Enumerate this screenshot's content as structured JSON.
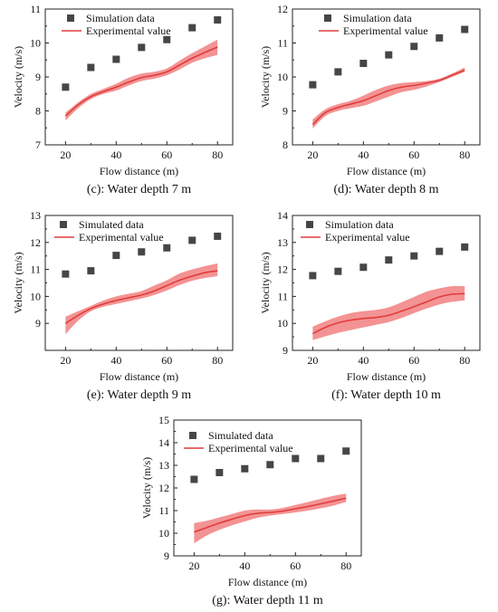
{
  "chart_data": [
    {
      "type": "line",
      "caption": "(c): Water depth 7 m",
      "xlabel": "Flow distance (m)",
      "ylabel": "Velocity (m/s)",
      "xlim": [
        12,
        86
      ],
      "ylim": [
        7,
        11
      ],
      "xticks": [
        "20",
        "40",
        "60",
        "80"
      ],
      "yticks": [
        "7",
        "8",
        "9",
        "10",
        "11"
      ],
      "legend_position": "top-left",
      "series": [
        {
          "name": "Simulation data",
          "kind": "scatter",
          "color": "#464646",
          "x": [
            20,
            30,
            40,
            50,
            60,
            70,
            80
          ],
          "y": [
            8.7,
            9.28,
            9.52,
            9.87,
            10.1,
            10.45,
            10.68
          ]
        },
        {
          "name": "Experimental value",
          "kind": "line_band",
          "color": "#e03c3c",
          "band_color": "#f07878",
          "x": [
            20,
            25,
            30,
            35,
            40,
            45,
            50,
            55,
            60,
            65,
            70,
            75,
            80
          ],
          "y": [
            7.85,
            8.18,
            8.42,
            8.57,
            8.7,
            8.85,
            8.98,
            9.05,
            9.15,
            9.35,
            9.55,
            9.72,
            9.88
          ],
          "upper": [
            7.95,
            8.25,
            8.5,
            8.65,
            8.8,
            8.98,
            9.1,
            9.15,
            9.25,
            9.48,
            9.7,
            9.9,
            10.1
          ],
          "lower": [
            7.72,
            8.08,
            8.35,
            8.5,
            8.6,
            8.75,
            8.88,
            8.95,
            9.05,
            9.22,
            9.42,
            9.55,
            9.65
          ]
        }
      ]
    },
    {
      "type": "line",
      "caption": "(d): Water depth 8 m",
      "xlabel": "Flow distance (m)",
      "ylabel": "Velocity (m/s)",
      "xlim": [
        12,
        86
      ],
      "ylim": [
        8,
        12
      ],
      "xticks": [
        "20",
        "40",
        "60",
        "80"
      ],
      "yticks": [
        "8",
        "9",
        "10",
        "11",
        "12"
      ],
      "legend_position": "top-left",
      "series": [
        {
          "name": "Simulation data",
          "kind": "scatter",
          "color": "#464646",
          "x": [
            20,
            30,
            40,
            50,
            60,
            70,
            80
          ],
          "y": [
            9.77,
            10.15,
            10.4,
            10.65,
            10.9,
            11.15,
            11.4
          ]
        },
        {
          "name": "Experimental value",
          "kind": "line_band",
          "color": "#e03c3c",
          "band_color": "#f07878",
          "x": [
            20,
            25,
            30,
            35,
            40,
            45,
            50,
            55,
            60,
            65,
            70,
            75,
            80
          ],
          "y": [
            8.6,
            8.95,
            9.1,
            9.2,
            9.3,
            9.45,
            9.6,
            9.7,
            9.75,
            9.82,
            9.9,
            10.05,
            10.2
          ],
          "upper": [
            8.75,
            9.05,
            9.2,
            9.3,
            9.45,
            9.62,
            9.75,
            9.82,
            9.85,
            9.88,
            9.95,
            10.1,
            10.28
          ],
          "lower": [
            8.48,
            8.85,
            9.0,
            9.08,
            9.15,
            9.28,
            9.42,
            9.55,
            9.62,
            9.72,
            9.85,
            10.0,
            10.15
          ]
        }
      ]
    },
    {
      "type": "line",
      "caption": "(e): Water depth 9 m",
      "xlabel": "Flow distance (m)",
      "ylabel": "Velocity (m/s)",
      "xlim": [
        12,
        86
      ],
      "ylim": [
        8,
        13
      ],
      "xticks": [
        "20",
        "40",
        "60",
        "80"
      ],
      "yticks": [
        "9",
        "10",
        "11",
        "12",
        "13"
      ],
      "legend_position": "top-left",
      "series": [
        {
          "name": "Simulated data",
          "kind": "scatter",
          "color": "#464646",
          "x": [
            20,
            30,
            40,
            50,
            60,
            70,
            80
          ],
          "y": [
            10.83,
            10.95,
            11.52,
            11.65,
            11.8,
            12.08,
            12.23
          ]
        },
        {
          "name": "Experimental value",
          "kind": "line_band",
          "color": "#e03c3c",
          "band_color": "#f07878",
          "x": [
            20,
            25,
            30,
            35,
            40,
            45,
            50,
            55,
            60,
            65,
            70,
            75,
            80
          ],
          "y": [
            9.0,
            9.3,
            9.55,
            9.72,
            9.85,
            9.95,
            10.05,
            10.2,
            10.4,
            10.6,
            10.75,
            10.88,
            10.95
          ],
          "upper": [
            9.25,
            9.45,
            9.65,
            9.85,
            10.0,
            10.1,
            10.2,
            10.4,
            10.6,
            10.85,
            11.0,
            11.12,
            11.22
          ],
          "lower": [
            8.6,
            9.1,
            9.45,
            9.62,
            9.72,
            9.82,
            9.92,
            10.05,
            10.22,
            10.42,
            10.58,
            10.68,
            10.75
          ]
        }
      ]
    },
    {
      "type": "line",
      "caption": "(f): Water depth 10 m",
      "xlabel": "Flow distance (m)",
      "ylabel": "Velocity (m/s)",
      "xlim": [
        12,
        86
      ],
      "ylim": [
        9,
        14
      ],
      "xticks": [
        "20",
        "40",
        "60",
        "80"
      ],
      "yticks": [
        "9",
        "10",
        "11",
        "12",
        "13",
        "14"
      ],
      "legend_position": "top-left",
      "series": [
        {
          "name": "Simulation data",
          "kind": "scatter",
          "color": "#464646",
          "x": [
            20,
            30,
            40,
            50,
            60,
            70,
            80
          ],
          "y": [
            11.77,
            11.93,
            12.08,
            12.35,
            12.5,
            12.67,
            12.83
          ]
        },
        {
          "name": "Experimental value",
          "kind": "line_band",
          "color": "#e03c3c",
          "band_color": "#f07878",
          "x": [
            20,
            25,
            30,
            35,
            40,
            45,
            50,
            55,
            60,
            65,
            70,
            75,
            80
          ],
          "y": [
            9.62,
            9.85,
            10.02,
            10.12,
            10.18,
            10.22,
            10.3,
            10.45,
            10.62,
            10.8,
            10.98,
            11.08,
            11.1
          ],
          "upper": [
            9.88,
            10.08,
            10.25,
            10.38,
            10.45,
            10.5,
            10.6,
            10.78,
            10.98,
            11.18,
            11.3,
            11.38,
            11.38
          ],
          "lower": [
            9.38,
            9.52,
            9.65,
            9.75,
            9.85,
            9.95,
            10.05,
            10.2,
            10.38,
            10.55,
            10.7,
            10.8,
            10.85
          ]
        }
      ]
    },
    {
      "type": "line",
      "caption": "(g): Water depth 11 m",
      "xlabel": "Flow distance (m)",
      "ylabel": "Velocity (m/s)",
      "xlim": [
        12,
        86
      ],
      "ylim": [
        9,
        15
      ],
      "xticks": [
        "20",
        "40",
        "60",
        "80"
      ],
      "yticks": [
        "9",
        "10",
        "11",
        "12",
        "13",
        "14",
        "15"
      ],
      "legend_position": "top-left",
      "series": [
        {
          "name": "Simulated data",
          "kind": "scatter",
          "color": "#464646",
          "x": [
            20,
            30,
            40,
            50,
            60,
            70,
            80
          ],
          "y": [
            12.38,
            12.68,
            12.85,
            13.03,
            13.3,
            13.3,
            13.63
          ]
        },
        {
          "name": "Experimental value",
          "kind": "line_band",
          "color": "#e03c3c",
          "band_color": "#f07878",
          "x": [
            20,
            25,
            30,
            35,
            40,
            45,
            50,
            55,
            60,
            65,
            70,
            75,
            80
          ],
          "y": [
            10.05,
            10.25,
            10.45,
            10.62,
            10.78,
            10.88,
            10.92,
            10.98,
            11.08,
            11.18,
            11.3,
            11.42,
            11.55
          ],
          "upper": [
            10.45,
            10.55,
            10.7,
            10.85,
            11.0,
            11.05,
            11.05,
            11.12,
            11.25,
            11.38,
            11.52,
            11.65,
            11.75
          ],
          "lower": [
            9.55,
            9.9,
            10.15,
            10.35,
            10.52,
            10.68,
            10.78,
            10.85,
            10.92,
            11.0,
            11.1,
            11.22,
            11.38
          ]
        }
      ]
    }
  ]
}
